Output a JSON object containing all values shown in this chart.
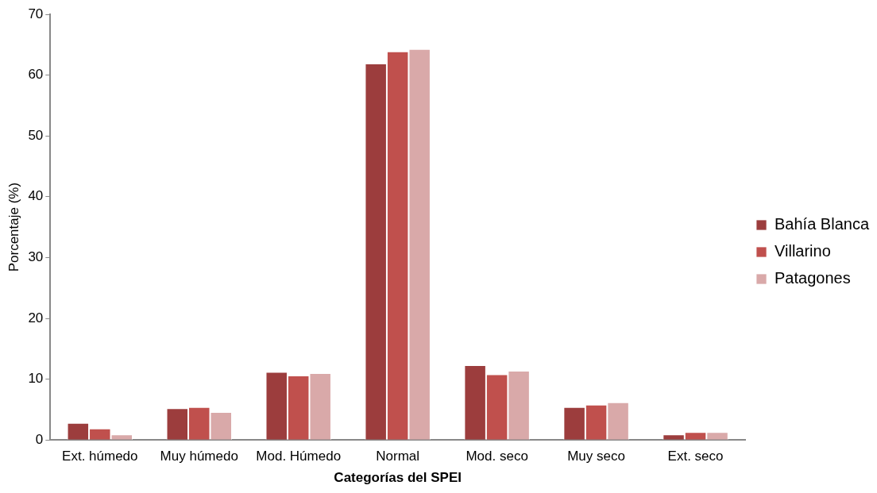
{
  "chart_data": {
    "type": "bar",
    "xlabel": "Categorías del SPEI",
    "ylabel": "Porcentaje (%)",
    "categories": [
      "Ext. húmedo",
      "Muy húmedo",
      "Mod. Húmedo",
      "Normal",
      "Mod. seco",
      "Muy seco",
      "Ext. seco"
    ],
    "series": [
      {
        "name": "Bahía Blanca",
        "color": "#9c3d3d",
        "values": [
          2.8,
          5.2,
          11.2,
          61.9,
          12.3,
          5.4,
          0.9
        ]
      },
      {
        "name": "Villarino",
        "color": "#c0504d",
        "values": [
          1.9,
          5.4,
          10.6,
          63.9,
          10.8,
          5.8,
          1.3
        ]
      },
      {
        "name": "Patagones",
        "color": "#d9a9a9",
        "values": [
          0.9,
          4.6,
          11.0,
          64.3,
          11.4,
          6.2,
          1.3
        ]
      }
    ],
    "ylim": [
      0,
      70
    ],
    "yticks": [
      0,
      10,
      20,
      30,
      40,
      50,
      60,
      70
    ],
    "grid": false,
    "legend": "right"
  }
}
